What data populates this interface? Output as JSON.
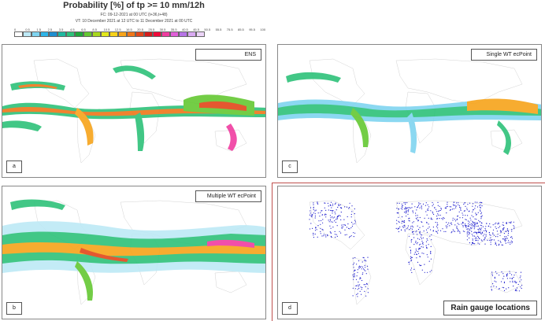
{
  "header": {
    "title": "Probability [%] of tp >= 10 mm/12h",
    "fc_line": "FC: 09-12-2021 at 00 UTC (t+36,t+48)",
    "vt_line": "VT: 10 December 2021 at 12 UTC to 11 December 2021 at 00 UTC"
  },
  "colorbar": {
    "ticks": [
      "0",
      "0.5",
      "1.5",
      "2.5",
      "3.5",
      "4.5",
      "6.5",
      "8.5",
      "10.5",
      "12.5",
      "16.5",
      "20.5",
      "25.5",
      "30.5",
      "35.5",
      "40.5",
      "45.5",
      "50.5",
      "55.5",
      "75.5",
      "85.5",
      "95.5",
      "100"
    ],
    "colors": [
      "#ffffff",
      "#bde9f6",
      "#7fd4f0",
      "#2fb4e8",
      "#1f8fd0",
      "#20b8a0",
      "#2ec27a",
      "#1fa83a",
      "#64c832",
      "#a8d81e",
      "#e2e81c",
      "#f6d21a",
      "#f7a41a",
      "#ef7619",
      "#e2461a",
      "#d41c1c",
      "#f00a3a",
      "#f03ca0",
      "#e060d8",
      "#b674e6",
      "#d9aaf2",
      "#ecd4f8"
    ]
  },
  "panels": [
    {
      "id": "a",
      "title": "ENS"
    },
    {
      "id": "c",
      "title": "Single WT ecPoint"
    },
    {
      "id": "b",
      "title": "Multiple WT ecPoint"
    },
    {
      "id": "d",
      "title": "Rain gauge locations"
    }
  ]
}
